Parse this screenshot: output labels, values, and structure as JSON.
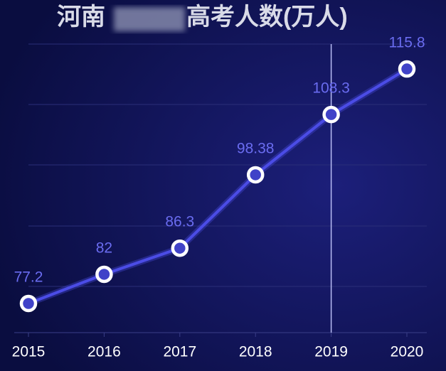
{
  "chart_data": {
    "type": "line",
    "title_start": "河南",
    "title_end": "高考人数(万人)",
    "categories": [
      "2015",
      "2016",
      "2017",
      "2018",
      "2019",
      "2020"
    ],
    "values": [
      77.2,
      82,
      86.3,
      98.38,
      108.3,
      115.8
    ],
    "color": "#4b4ce6",
    "ylim": [
      72.4,
      119.9
    ],
    "highlight": "2019"
  }
}
